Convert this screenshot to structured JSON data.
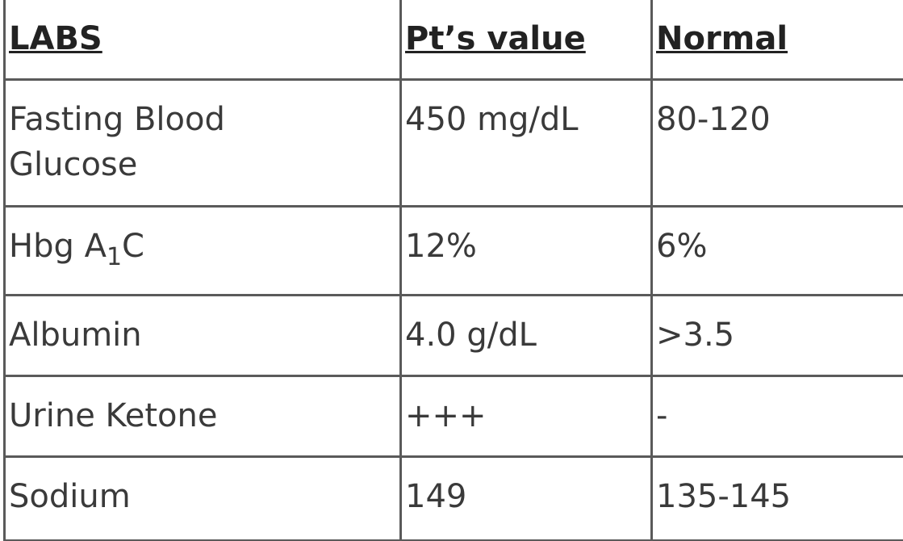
{
  "table": {
    "header": [
      "LABS",
      "Pt’s value",
      "Normal"
    ],
    "rows": [
      [
        "Fasting Blood Glucose",
        "450 mg/dL",
        "80-120"
      ],
      [
        {
          "text": "Hbg A",
          "sub": "1",
          "tail": "C"
        },
        "12%",
        "6%"
      ],
      [
        "Albumin",
        "4.0 g/dL",
        ">3.5"
      ],
      [
        "Urine Ketone",
        "+++",
        "-"
      ],
      [
        "Sodium",
        "149",
        "135-145"
      ]
    ]
  }
}
